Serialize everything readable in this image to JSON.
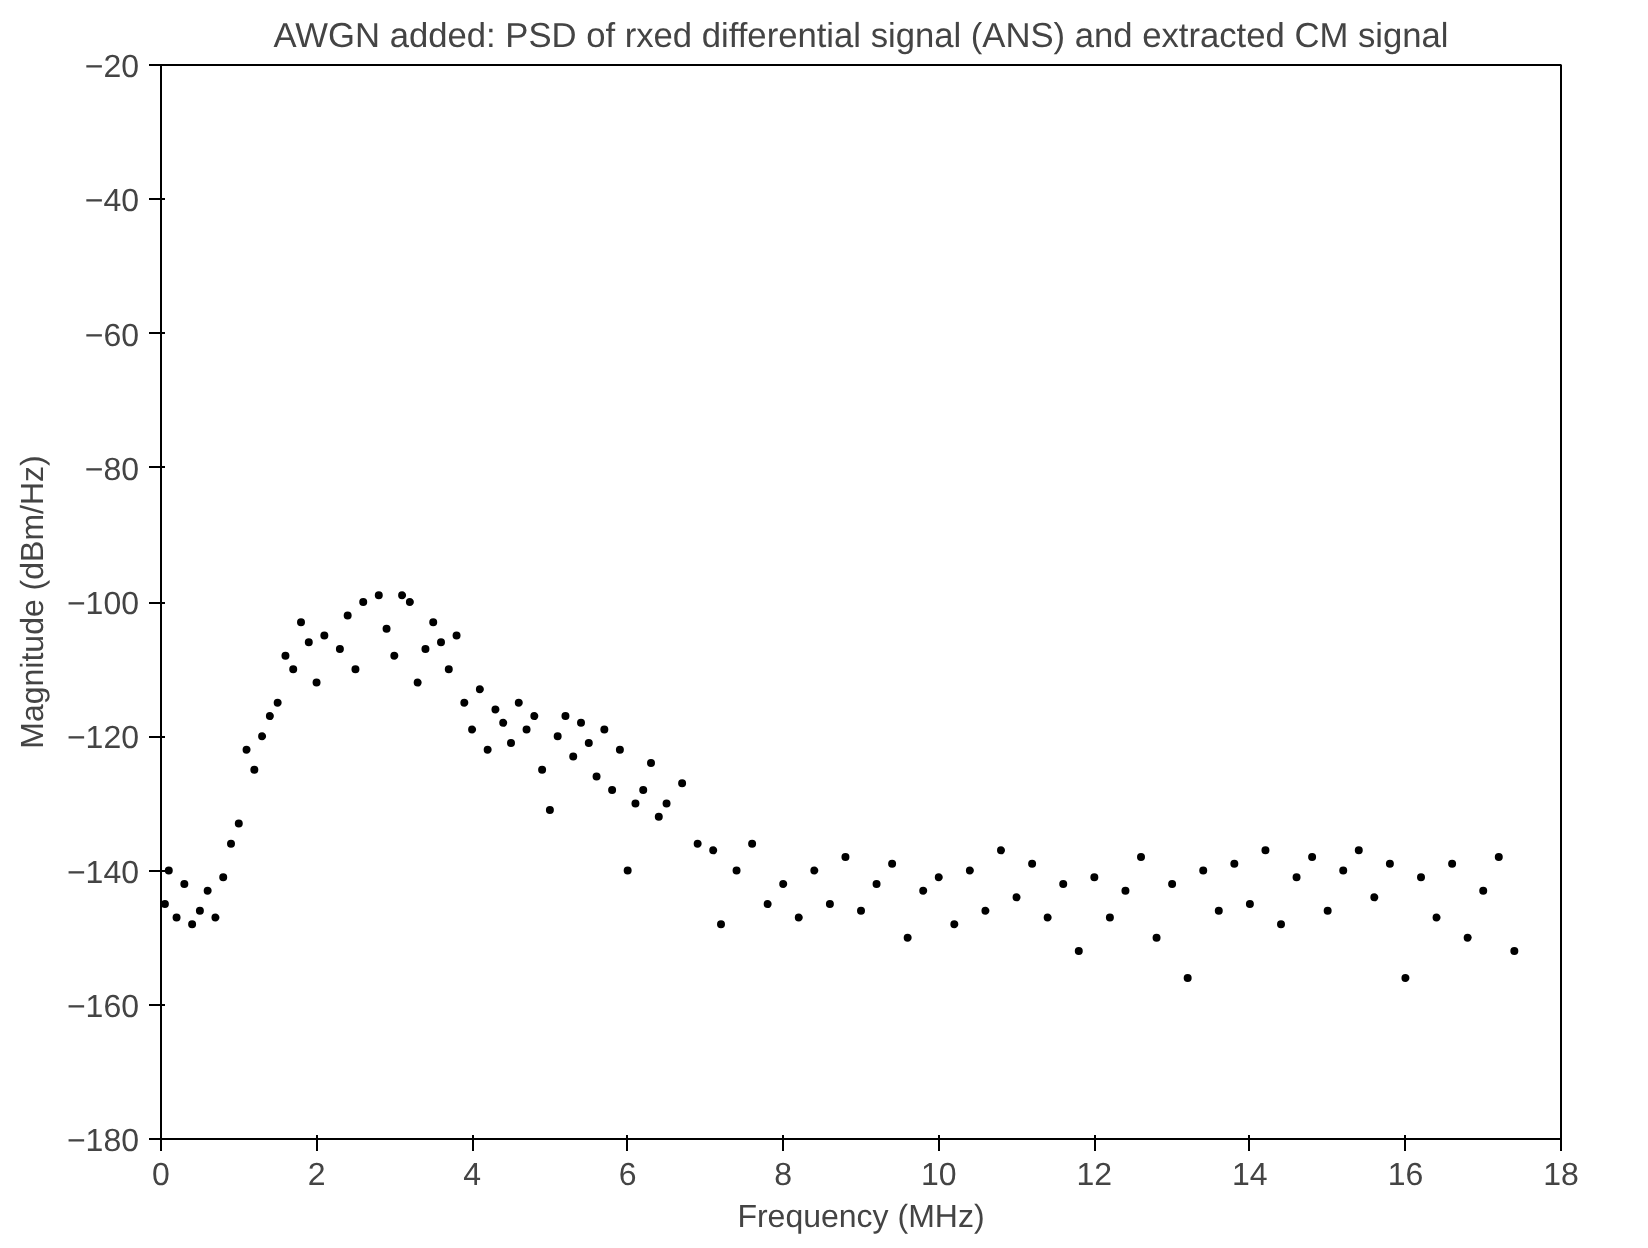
{
  "chart_data": {
    "type": "scatter",
    "title": "AWGN added: PSD of rxed differential signal (ANS) and extracted CM signal",
    "xlabel": "Frequency (MHz)",
    "ylabel": "Magnitude (dBm/Hz)",
    "xlim": [
      0,
      18
    ],
    "xticks": [
      0,
      2,
      4,
      6,
      8,
      10,
      12,
      14,
      16,
      18
    ],
    "ylim": [
      -180,
      -20
    ],
    "yticks": [
      -180,
      -160,
      -140,
      -120,
      -100,
      -80,
      -60,
      -40,
      -20
    ],
    "grid": false,
    "marker": "circle",
    "series": [
      {
        "color": "#000000",
        "x": [
          0.05,
          0.1,
          0.2,
          0.3,
          0.4,
          0.5,
          0.6,
          0.7,
          0.8,
          0.9,
          1.0,
          1.1,
          1.2,
          1.3,
          1.4,
          1.5,
          1.6,
          1.7,
          1.8,
          1.9,
          2.0,
          2.1,
          2.3,
          2.4,
          2.5,
          2.6,
          2.8,
          2.9,
          3.0,
          3.1,
          3.2,
          3.3,
          3.4,
          3.5,
          3.6,
          3.7,
          3.8,
          3.9,
          4.0,
          4.1,
          4.2,
          4.3,
          4.4,
          4.5,
          4.6,
          4.7,
          4.8,
          4.9,
          5.0,
          5.1,
          5.2,
          5.3,
          5.4,
          5.5,
          5.6,
          5.7,
          5.8,
          5.9,
          6.0,
          6.1,
          6.2,
          6.3,
          6.4,
          6.5,
          6.7,
          6.9,
          7.1,
          7.2,
          7.4,
          7.6,
          7.8,
          8.0,
          8.2,
          8.4,
          8.6,
          8.8,
          9.0,
          9.2,
          9.4,
          9.6,
          9.8,
          10.0,
          10.2,
          10.4,
          10.6,
          10.8,
          11.0,
          11.2,
          11.4,
          11.6,
          11.8,
          12.0,
          12.2,
          12.4,
          12.6,
          12.8,
          13.0,
          13.2,
          13.4,
          13.6,
          13.8,
          14.0,
          14.2,
          14.4,
          14.6,
          14.8,
          15.0,
          15.2,
          15.4,
          15.6,
          15.8,
          16.0,
          16.2,
          16.4,
          16.6,
          16.8,
          17.0,
          17.2,
          17.4
        ],
        "values": [
          -145,
          -140,
          -147,
          -142,
          -148,
          -146,
          -143,
          -147,
          -141,
          -136,
          -133,
          -122,
          -125,
          -120,
          -117,
          -115,
          -108,
          -110,
          -103,
          -106,
          -112,
          -105,
          -107,
          -102,
          -110,
          -100,
          -99,
          -104,
          -108,
          -99,
          -100,
          -112,
          -107,
          -103,
          -106,
          -110,
          -105,
          -115,
          -119,
          -113,
          -122,
          -116,
          -118,
          -121,
          -115,
          -119,
          -117,
          -125,
          -131,
          -120,
          -117,
          -123,
          -118,
          -121,
          -126,
          -119,
          -128,
          -122,
          -140,
          -130,
          -128,
          -124,
          -132,
          -130,
          -127,
          -136,
          -137,
          -148,
          -140,
          -136,
          -145,
          -142,
          -147,
          -140,
          -145,
          -138,
          -146,
          -142,
          -139,
          -150,
          -143,
          -141,
          -148,
          -140,
          -146,
          -137,
          -144,
          -139,
          -147,
          -142,
          -152,
          -141,
          -147,
          -143,
          -138,
          -150,
          -142,
          -156,
          -140,
          -146,
          -139,
          -145,
          -137,
          -148,
          -141,
          -138,
          -146,
          -140,
          -137,
          -144,
          -139,
          -156,
          -141,
          -147,
          -139,
          -150,
          -143,
          -138,
          -152
        ]
      }
    ]
  }
}
